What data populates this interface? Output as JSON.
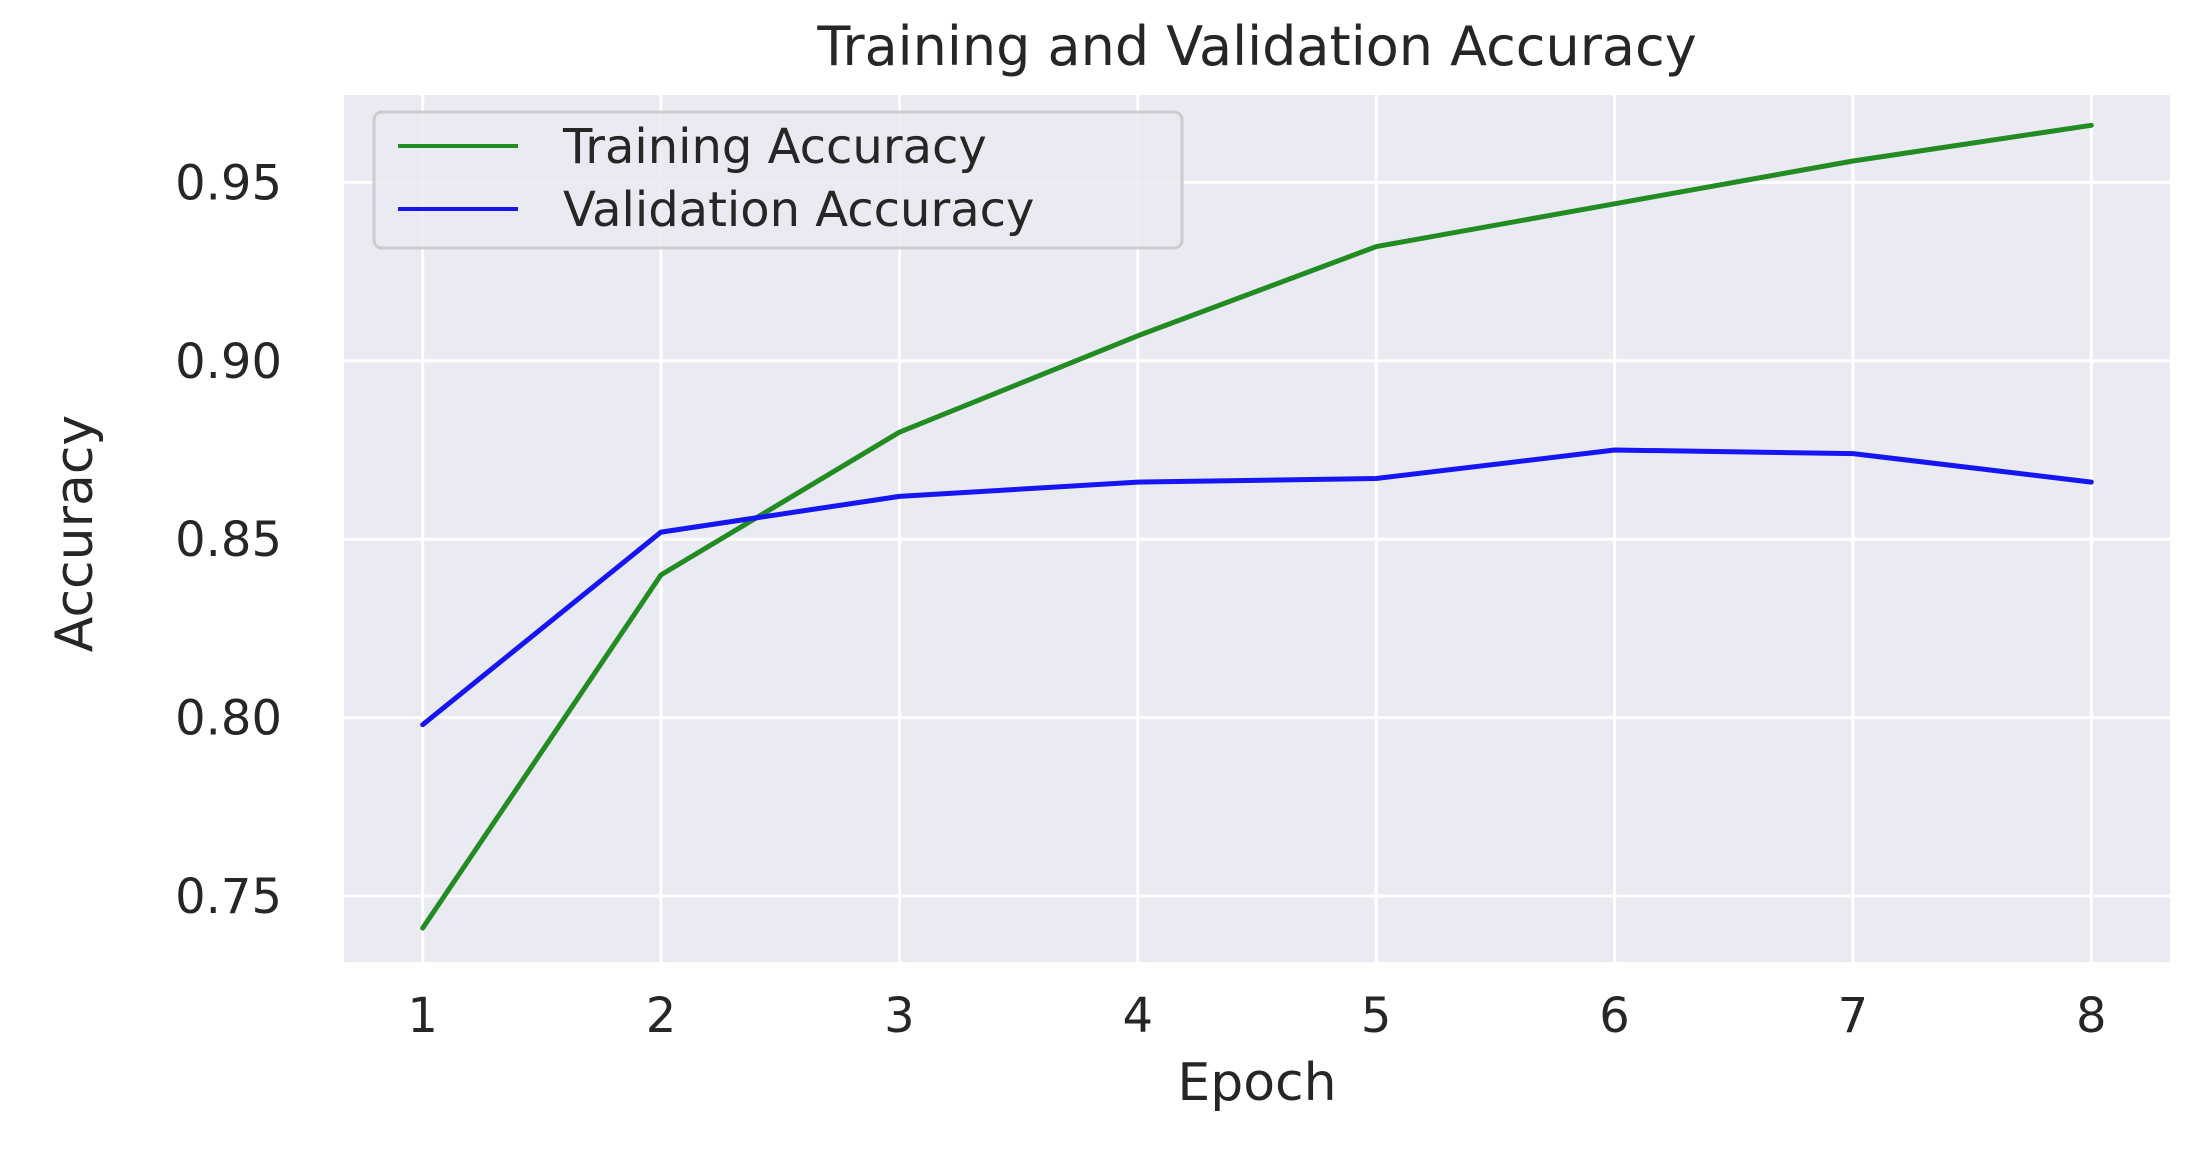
{
  "chart_data": {
    "type": "line",
    "title": "Training and Validation Accuracy",
    "xlabel": "Epoch",
    "ylabel": "Accuracy",
    "x": [
      1,
      2,
      3,
      4,
      5,
      6,
      7,
      8
    ],
    "xlim": [
      0.67,
      8.33
    ],
    "ylim": [
      0.7315,
      0.9745
    ],
    "xticks": [
      1,
      2,
      3,
      4,
      5,
      6,
      7,
      8
    ],
    "yticks": [
      0.75,
      0.8,
      0.85,
      0.9,
      0.95
    ],
    "ytick_labels": [
      "0.75",
      "0.80",
      "0.85",
      "0.90",
      "0.95"
    ],
    "grid": true,
    "legend_position": "upper-left",
    "series": [
      {
        "name": "Training Accuracy",
        "color": "#228b22",
        "values": [
          0.741,
          0.84,
          0.88,
          0.907,
          0.932,
          0.944,
          0.956,
          0.966
        ]
      },
      {
        "name": "Validation Accuracy",
        "color": "#1515f5",
        "values": [
          0.798,
          0.852,
          0.862,
          0.866,
          0.867,
          0.875,
          0.874,
          0.866
        ]
      }
    ],
    "colors": {
      "axes_background": "#eaeaf2",
      "grid": "#ffffff",
      "text": "#262626"
    }
  }
}
